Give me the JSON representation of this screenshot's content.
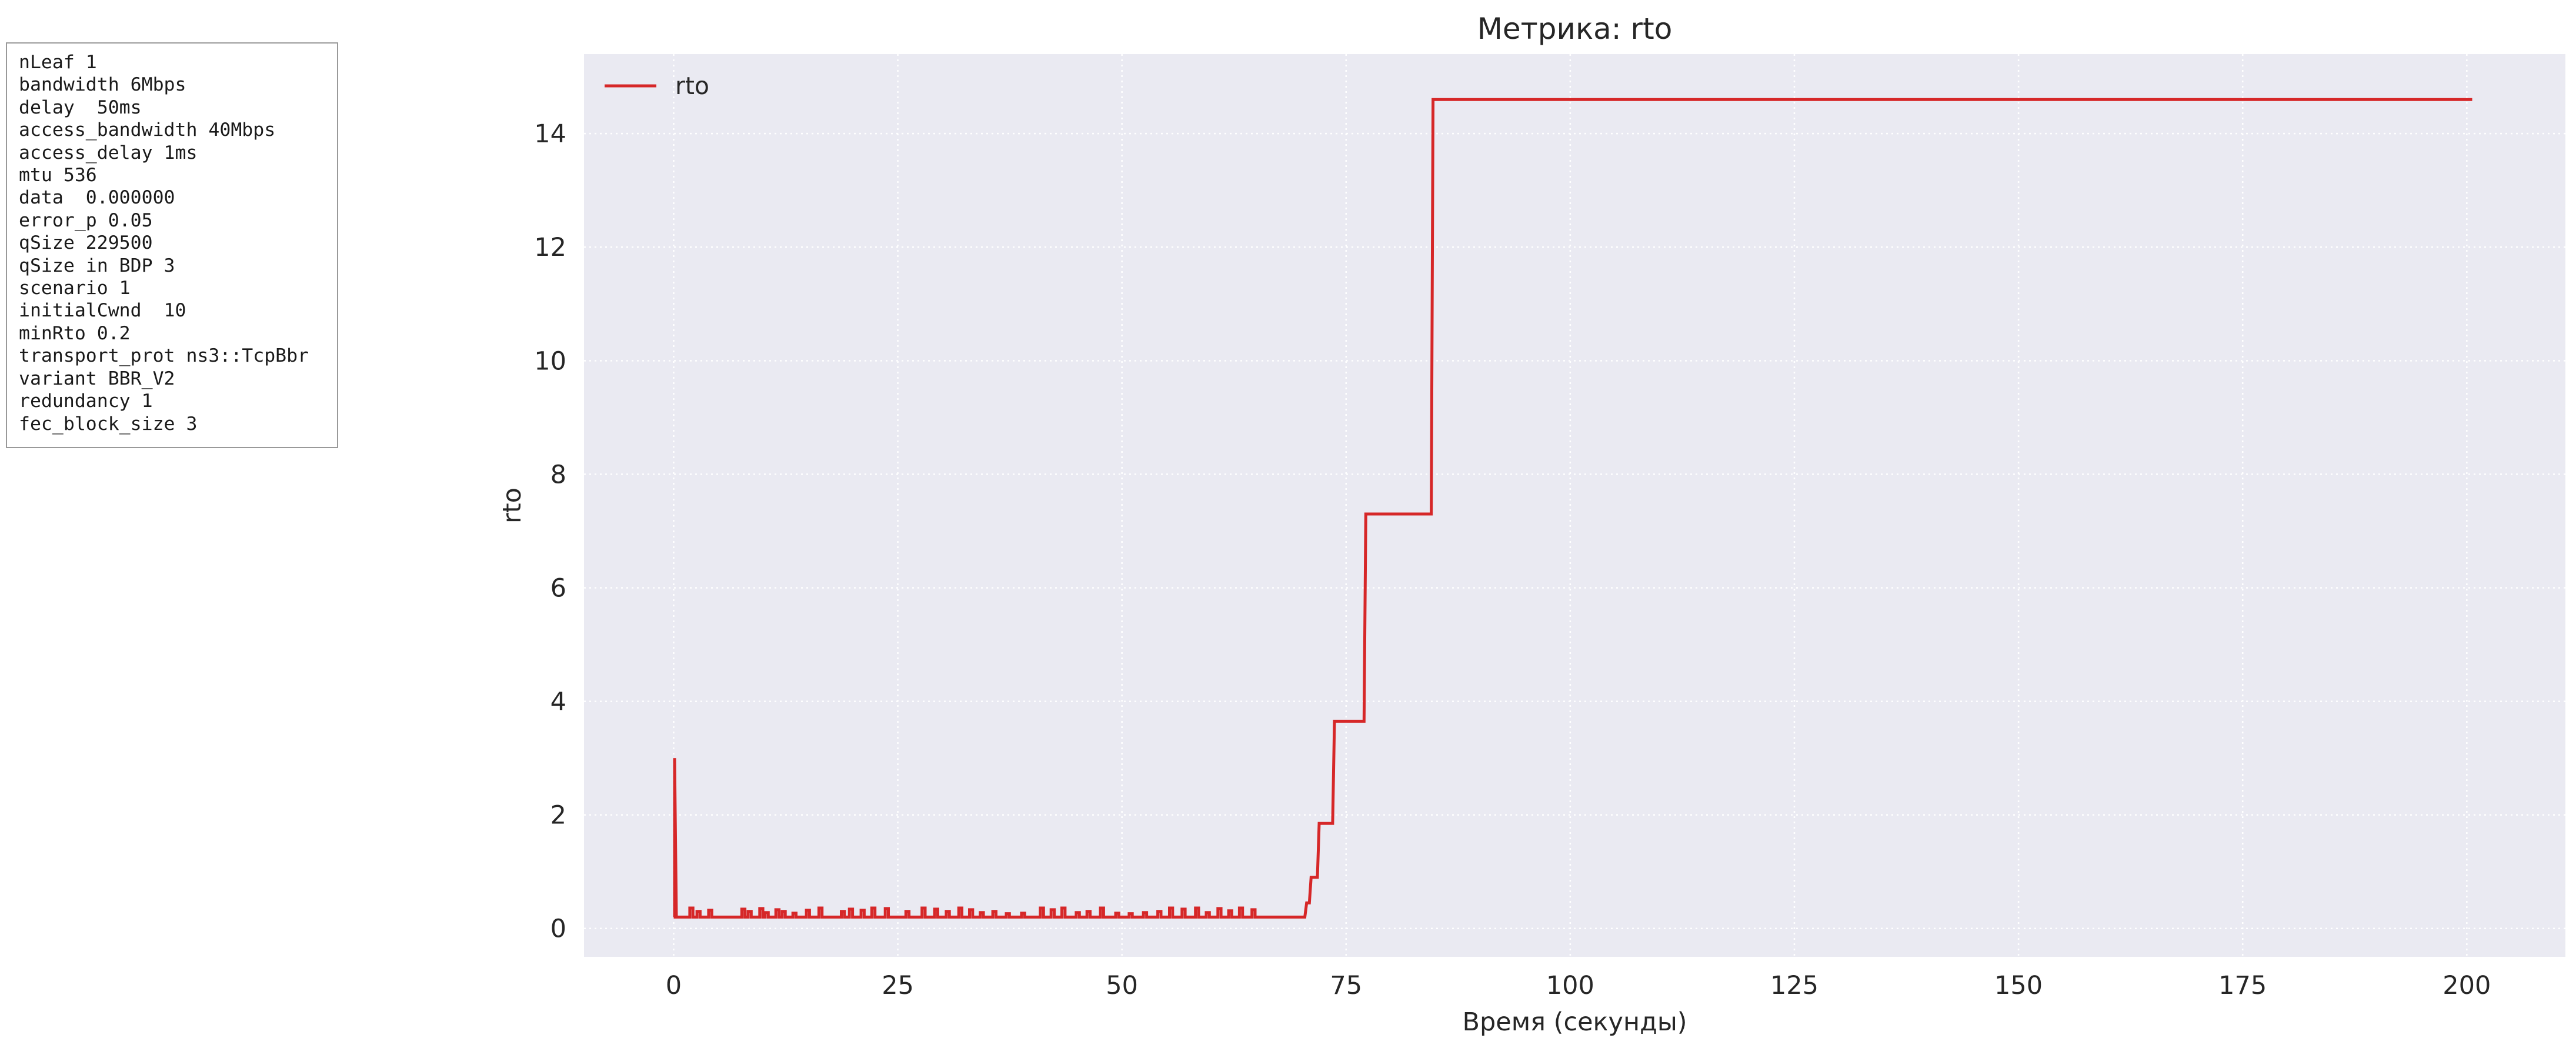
{
  "params_box": {
    "lines": [
      "nLeaf 1",
      "bandwidth 6Mbps",
      "delay  50ms",
      "access_bandwidth 40Mbps",
      "access_delay 1ms",
      "mtu 536",
      "data  0.000000",
      "error_p 0.05",
      "qSize 229500",
      "qSize in BDP 3",
      "scenario 1",
      "initialCwnd  10",
      "minRto 0.2",
      "transport_prot ns3::TcpBbr",
      "variant BBR_V2",
      "redundancy 1",
      "fec_block_size 3"
    ]
  },
  "colors": {
    "line": "#d62728",
    "plot_background": "#eaeaf2",
    "grid": "#ffffff",
    "text": "#262626"
  },
  "chart_data": {
    "type": "line",
    "title": "Метрика: rto",
    "xlabel": "Время (секунды)",
    "ylabel": "rto",
    "xlim": [
      -10,
      211
    ],
    "ylim": [
      -0.5,
      15.4
    ],
    "xticks": [
      0,
      25,
      50,
      75,
      100,
      125,
      150,
      175,
      200
    ],
    "yticks": [
      0,
      2,
      4,
      6,
      8,
      10,
      12,
      14
    ],
    "grid": true,
    "grid_style": "dotted",
    "legend": {
      "position": "top-left",
      "entries": [
        "rto"
      ]
    },
    "series": [
      {
        "name": "rto",
        "baseline": 0.2,
        "initial_spike": {
          "x": 0.1,
          "y": 3.0
        },
        "spikes": [
          [
            1.8,
            0.36
          ],
          [
            2.6,
            0.3
          ],
          [
            3.9,
            0.32
          ],
          [
            7.6,
            0.34
          ],
          [
            8.3,
            0.3
          ],
          [
            9.6,
            0.35
          ],
          [
            10.2,
            0.28
          ],
          [
            11.4,
            0.33
          ],
          [
            12.1,
            0.3
          ],
          [
            13.3,
            0.27
          ],
          [
            14.8,
            0.32
          ],
          [
            16.2,
            0.36
          ],
          [
            18.7,
            0.3
          ],
          [
            19.6,
            0.34
          ],
          [
            20.9,
            0.32
          ],
          [
            22.1,
            0.36
          ],
          [
            23.6,
            0.35
          ],
          [
            25.9,
            0.3
          ],
          [
            27.7,
            0.36
          ],
          [
            29.1,
            0.34
          ],
          [
            30.4,
            0.3
          ],
          [
            31.8,
            0.36
          ],
          [
            33.0,
            0.33
          ],
          [
            34.2,
            0.28
          ],
          [
            35.6,
            0.3
          ],
          [
            37.1,
            0.26
          ],
          [
            38.8,
            0.27
          ],
          [
            40.9,
            0.36
          ],
          [
            42.1,
            0.33
          ],
          [
            43.3,
            0.36
          ],
          [
            44.9,
            0.28
          ],
          [
            46.1,
            0.3
          ],
          [
            47.6,
            0.36
          ],
          [
            49.3,
            0.27
          ],
          [
            50.8,
            0.26
          ],
          [
            52.4,
            0.28
          ],
          [
            54.0,
            0.3
          ],
          [
            55.3,
            0.36
          ],
          [
            56.7,
            0.34
          ],
          [
            58.2,
            0.36
          ],
          [
            59.4,
            0.28
          ],
          [
            60.7,
            0.35
          ],
          [
            61.9,
            0.31
          ],
          [
            63.1,
            0.36
          ],
          [
            64.5,
            0.33
          ]
        ],
        "steps": [
          [
            0.1,
            3.0
          ],
          [
            0.3,
            0.2
          ],
          [
            70.4,
            0.2
          ],
          [
            70.6,
            0.45
          ],
          [
            70.9,
            0.45
          ],
          [
            71.1,
            0.9
          ],
          [
            71.8,
            0.9
          ],
          [
            72.0,
            1.85
          ],
          [
            73.5,
            1.85
          ],
          [
            73.7,
            3.65
          ],
          [
            77.0,
            3.65
          ],
          [
            77.2,
            7.3
          ],
          [
            84.5,
            7.3
          ],
          [
            84.7,
            14.6
          ],
          [
            200.6,
            14.6
          ]
        ]
      }
    ]
  }
}
